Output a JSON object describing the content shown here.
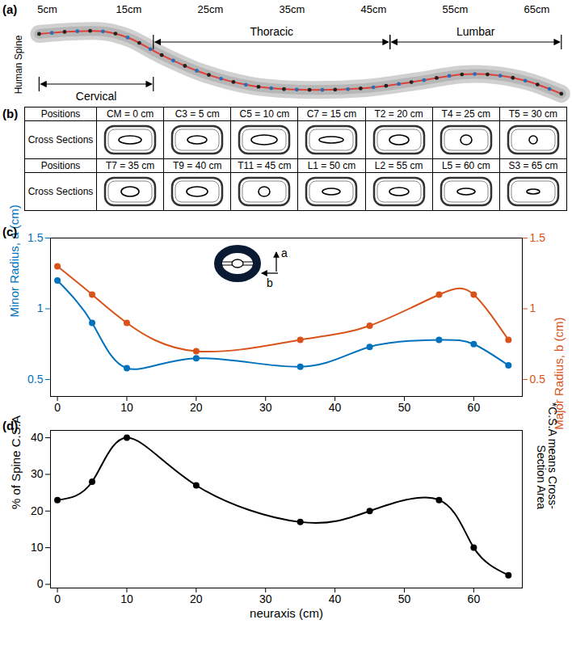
{
  "spine": {
    "title": "(a)",
    "ylabel": "Human Spine",
    "xlim": [
      0,
      70
    ],
    "xticks": [
      {
        "value": 5,
        "label": "5cm"
      },
      {
        "value": 15,
        "label": "15cm"
      },
      {
        "value": 25,
        "label": "25cm"
      },
      {
        "value": 35,
        "label": "35cm"
      },
      {
        "value": 45,
        "label": "45cm"
      },
      {
        "value": 55,
        "label": "55cm"
      },
      {
        "value": 65,
        "label": "65cm"
      }
    ],
    "regions": [
      {
        "name": "Cervical",
        "range": [
          4,
          18
        ]
      },
      {
        "name": "Thoracic",
        "range": [
          18,
          47
        ]
      },
      {
        "name": "Lumbar",
        "range": [
          47,
          68
        ]
      }
    ]
  },
  "cross_sections": {
    "title": "(b)",
    "row_header": "Positions",
    "image_header": "Cross Sections",
    "positions": [
      "CM = 0 cm",
      "C3 = 5 cm",
      "C5 = 10 cm",
      "C7 = 15 cm",
      "T2 = 20 cm",
      "T4 = 25 cm",
      "T5 = 30 cm",
      "T7 = 35 cm",
      "T9 = 40 cm",
      "T11 = 45 cm",
      "L1 = 50 cm",
      "L2 = 55 cm",
      "L5 = 60 cm",
      "S3 = 65 cm"
    ]
  },
  "chart_data": [
    {
      "type": "line",
      "title": "(c)",
      "ylabel": "Minor Radius, a (cm)",
      "y2label": "Major Radius, b (cm)",
      "x": [
        0,
        5,
        10,
        20,
        35,
        45,
        55,
        60,
        65
      ],
      "xlim": [
        -1,
        67
      ],
      "xticks": [
        0,
        10,
        20,
        30,
        40,
        50,
        60
      ],
      "ylim": [
        0.38,
        1.5
      ],
      "yticks": [
        0.5,
        1,
        1.5
      ],
      "y2lim": [
        0.38,
        1.5
      ],
      "y2ticks": [
        0.5,
        1,
        1.5
      ],
      "series": [
        {
          "name": "a",
          "color": "#0072BD",
          "marker": "circle",
          "line_style": "solid",
          "values": [
            1.2,
            0.9,
            0.58,
            0.65,
            0.59,
            0.73,
            0.78,
            0.75,
            0.6
          ]
        },
        {
          "name": "b",
          "color": "#D95319",
          "marker": "circle",
          "line_style": "solid",
          "axis": "y2",
          "values": [
            1.3,
            1.1,
            0.9,
            0.7,
            0.78,
            0.88,
            1.1,
            1.1,
            0.78
          ]
        }
      ]
    },
    {
      "type": "line",
      "title": "(d)",
      "xlabel": "neuraxis (cm)",
      "ylabel": "% of Spine C.S.A",
      "annotations": [
        "*C.S.A means Cross-Section Area"
      ],
      "x": [
        0,
        5,
        10,
        20,
        35,
        45,
        55,
        60,
        65
      ],
      "values": [
        23,
        28,
        40,
        27,
        17,
        20,
        23,
        10,
        2.5
      ],
      "color": "#000000",
      "marker": "circle",
      "line_style": "solid",
      "xlim": [
        -1,
        67
      ],
      "xticks": [
        0,
        10,
        20,
        30,
        40,
        50,
        60
      ],
      "ylim": [
        -1,
        42
      ],
      "yticks": [
        0,
        10,
        20,
        30,
        40
      ]
    }
  ]
}
